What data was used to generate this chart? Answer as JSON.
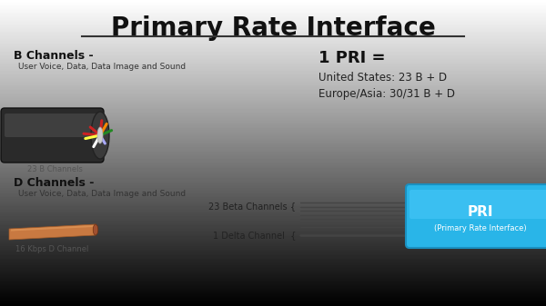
{
  "title": "Primary Rate Interface",
  "bg_color": "#c8c8c8",
  "title_fontsize": 20,
  "b_channel_label": "B Channels -",
  "b_channel_sub": "User Voice, Data, Data Image and Sound",
  "b_channel_caption": "23 B Channels",
  "d_channel_label": "D Channels -",
  "d_channel_sub": "User Voice, Data, Data Image and Sound",
  "d_channel_caption": "16 Kbps D Channel",
  "pri_eq_line1": "1 PRI =",
  "pri_eq_line2": "United States: 23 B + D",
  "pri_eq_line3": "Europe/Asia: 30/31 B + D",
  "beta_label": "23 Beta Channels {",
  "delta_label": "1 Delta Channel  {",
  "pri_label": "PRI",
  "pri_sublabel": "(Primary Rate Interface)",
  "cable_color": "#29b5e8",
  "wire_color": "#444444",
  "copper_color_1": "#c87941",
  "copper_color_2": "#a05a28"
}
